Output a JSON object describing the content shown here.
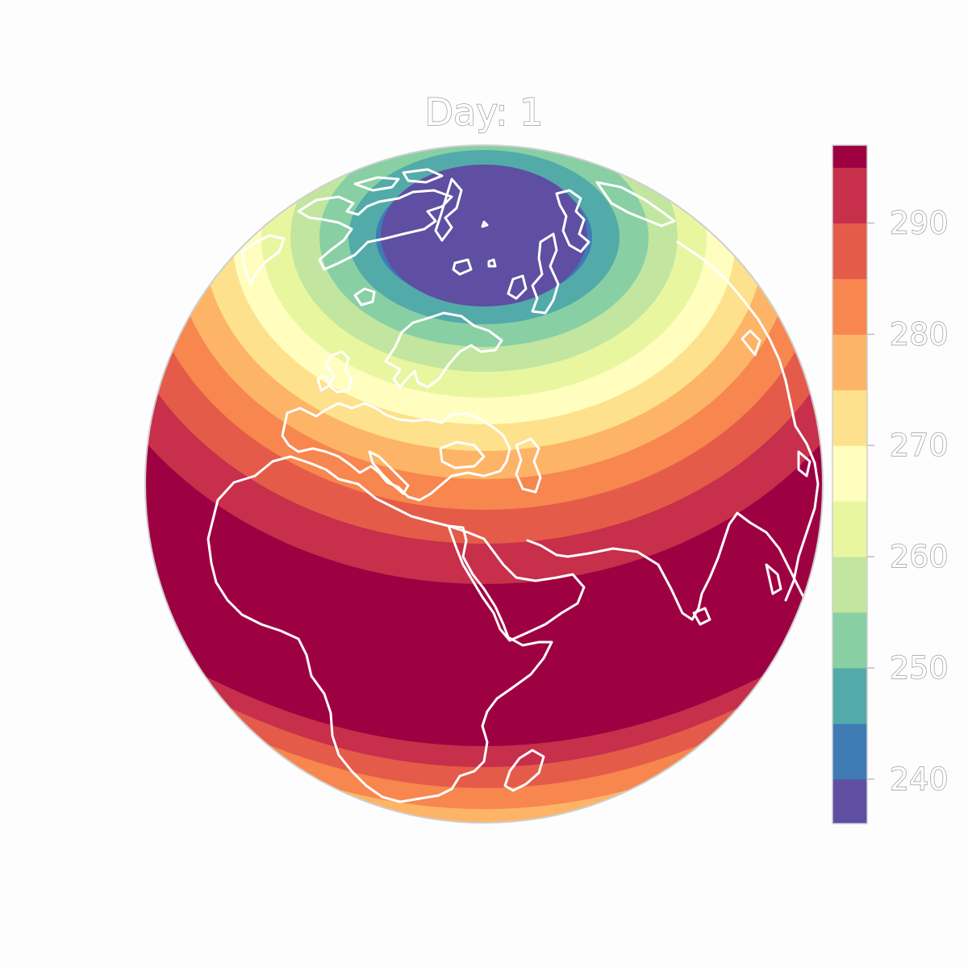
{
  "title": "Day: 1",
  "colorbar": {
    "min": 236,
    "max": 297,
    "ticks": [
      240,
      250,
      260,
      270,
      280,
      290
    ],
    "tick_labels": [
      "240",
      "250",
      "260",
      "270",
      "280",
      "290"
    ],
    "levels": [
      {
        "from": 236,
        "to": 240,
        "color": "#5e4fa2"
      },
      {
        "from": 240,
        "to": 245,
        "color": "#3f7bb5"
      },
      {
        "from": 245,
        "to": 250,
        "color": "#52aba8"
      },
      {
        "from": 250,
        "to": 255,
        "color": "#88cfa4"
      },
      {
        "from": 255,
        "to": 260,
        "color": "#c2e69f"
      },
      {
        "from": 260,
        "to": 265,
        "color": "#e9f6a0"
      },
      {
        "from": 265,
        "to": 270,
        "color": "#fffebe"
      },
      {
        "from": 270,
        "to": 275,
        "color": "#fee18c"
      },
      {
        "from": 275,
        "to": 280,
        "color": "#fdb466"
      },
      {
        "from": 280,
        "to": 285,
        "color": "#f7864f"
      },
      {
        "from": 285,
        "to": 290,
        "color": "#e45c49"
      },
      {
        "from": 290,
        "to": 295,
        "color": "#c72f4b"
      },
      {
        "from": 295,
        "to": 297,
        "color": "#9e0142"
      }
    ]
  },
  "map": {
    "projection": "orthographic",
    "field": "temperature",
    "coastline_color": "#ffffff",
    "polar_cold_color": "#5e4fa2",
    "warm_color": "#9e0142"
  }
}
